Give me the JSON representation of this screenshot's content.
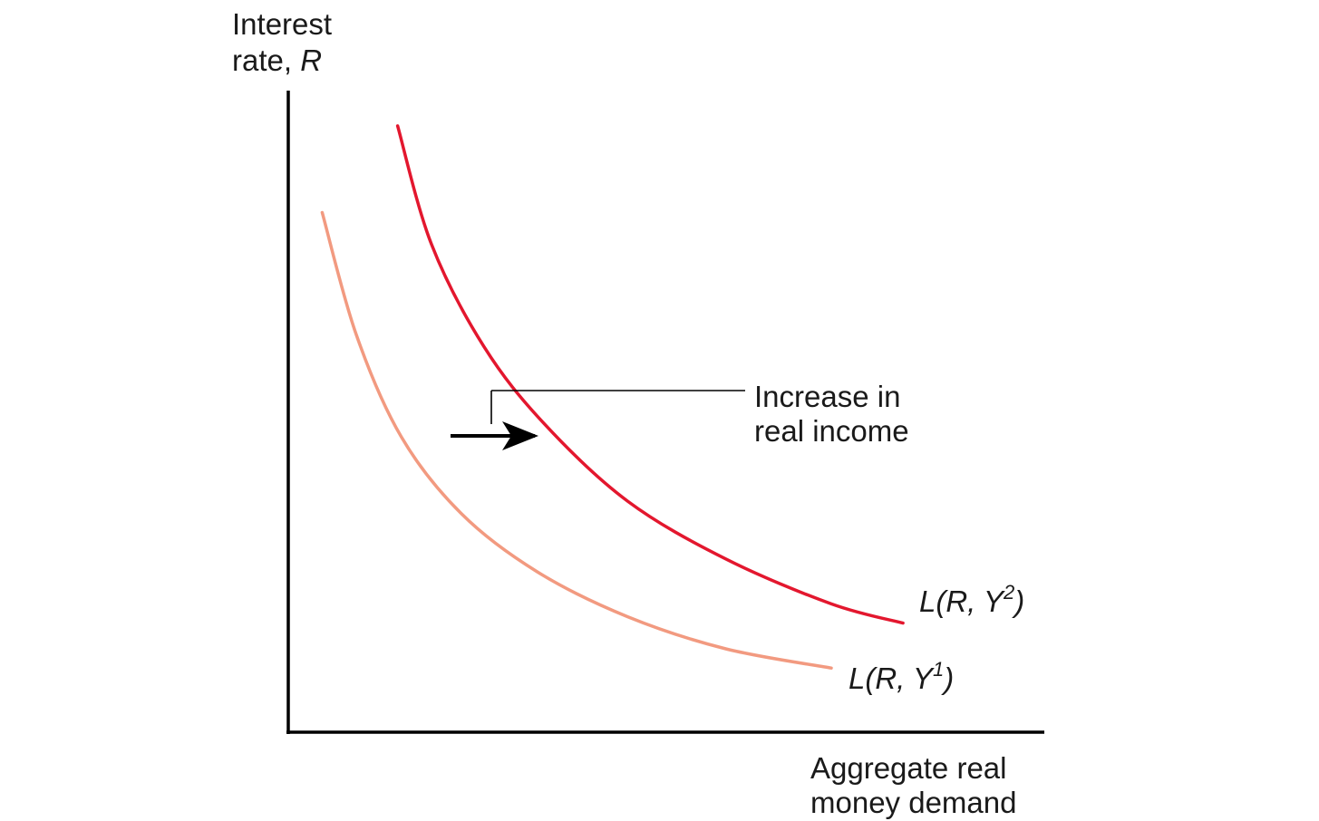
{
  "chart_data": {
    "type": "line",
    "title": "",
    "ylabel": {
      "line1": "Interest",
      "line2_prefix": "rate, ",
      "line2_symbol": "R"
    },
    "xlabel": {
      "line1": "Aggregate real",
      "line2": "money demand"
    },
    "xlim": [
      0,
      10
    ],
    "ylim": [
      0,
      10
    ],
    "grid": false,
    "annotation": {
      "line1": "Increase in",
      "line2": "real income",
      "arrow_direction": "right"
    },
    "series": [
      {
        "name": "L(R, Y1)",
        "label_main": "L(R, Y",
        "label_sup": "1",
        "label_close": ")",
        "color": "#f29a80",
        "x": [
          0.45,
          0.9,
          1.5,
          2.3,
          3.3,
          4.5,
          5.8,
          7.2
        ],
        "y": [
          8.1,
          6.2,
          4.6,
          3.4,
          2.5,
          1.8,
          1.3,
          1.0
        ]
      },
      {
        "name": "L(R, Y2)",
        "label_main": "L(R, Y",
        "label_sup": "2",
        "label_close": ")",
        "color": "#e3172e",
        "x": [
          1.45,
          1.9,
          2.6,
          3.4,
          4.5,
          5.8,
          7.2,
          8.15
        ],
        "y": [
          9.45,
          7.6,
          6.0,
          4.8,
          3.6,
          2.7,
          2.0,
          1.7
        ]
      }
    ]
  }
}
